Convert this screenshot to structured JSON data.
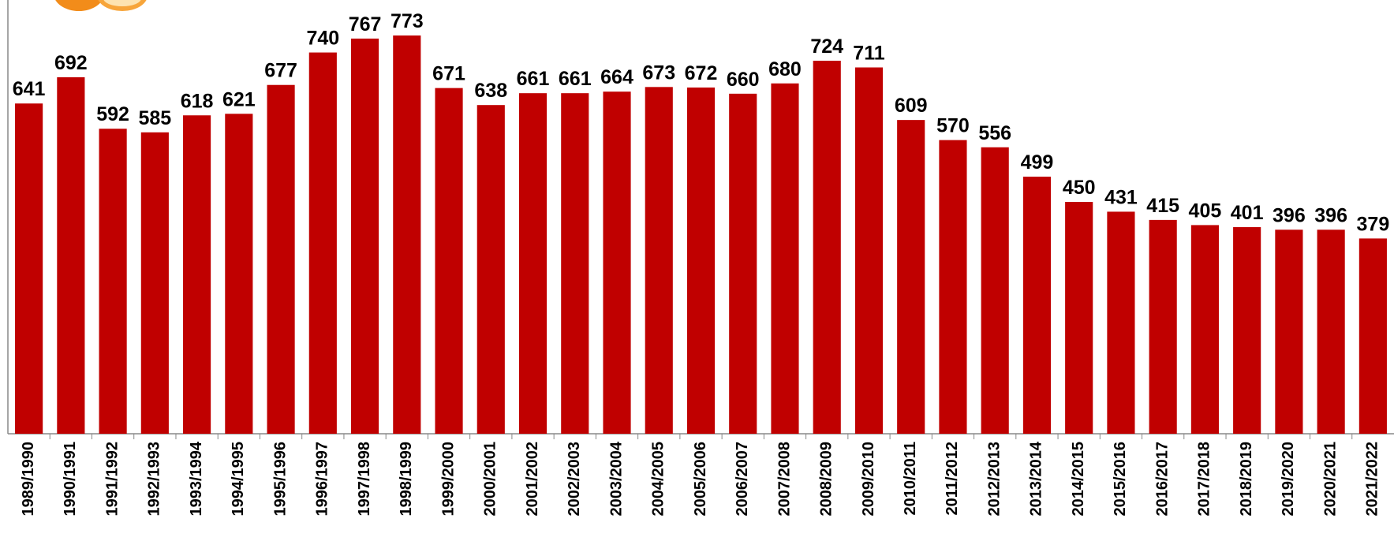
{
  "chart_data": {
    "type": "bar",
    "categories": [
      "1989/1990",
      "1990/1991",
      "1991/1992",
      "1992/1993",
      "1993/1994",
      "1994/1995",
      "1995/1996",
      "1996/1997",
      "1997/1998",
      "1998/1999",
      "1999/2000",
      "2000/2001",
      "2001/2002",
      "2002/2003",
      "2003/2004",
      "2004/2005",
      "2005/2006",
      "2006/2007",
      "2007/2008",
      "2008/2009",
      "2009/2010",
      "2010/2011",
      "2011/2012",
      "2012/2013",
      "2013/2014",
      "2014/2015",
      "2015/2016",
      "2016/2017",
      "2017/2018",
      "2018/2019",
      "2019/2020",
      "2020/2021",
      "2021/2022"
    ],
    "values": [
      641,
      692,
      592,
      585,
      618,
      621,
      677,
      740,
      767,
      773,
      671,
      638,
      661,
      661,
      664,
      673,
      672,
      660,
      680,
      724,
      711,
      609,
      570,
      556,
      499,
      450,
      431,
      415,
      405,
      401,
      396,
      396,
      379
    ],
    "color": "#c00000"
  }
}
